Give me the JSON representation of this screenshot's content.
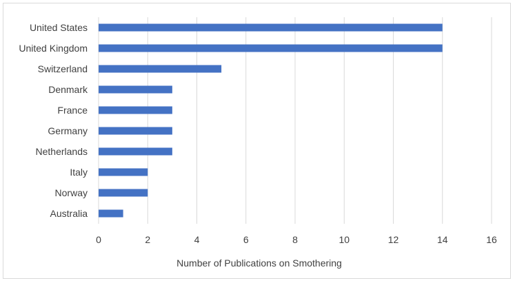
{
  "chart_data": {
    "type": "bar",
    "orientation": "horizontal",
    "categories": [
      "United States",
      "United Kingdom",
      "Switzerland",
      "Denmark",
      "France",
      "Germany",
      "Netherlands",
      "Italy",
      "Norway",
      "Australia"
    ],
    "values": [
      14,
      14,
      5,
      3,
      3,
      3,
      3,
      2,
      2,
      1
    ],
    "title": "",
    "xlabel": "Number of Publications on Smothering",
    "ylabel": "",
    "xlim": [
      0,
      16
    ],
    "x_ticks": [
      0,
      2,
      4,
      6,
      8,
      10,
      12,
      14,
      16
    ],
    "grid": "vertical",
    "legend": "none",
    "bar_color": "#4472c4",
    "grid_color": "#d9d9d9"
  }
}
